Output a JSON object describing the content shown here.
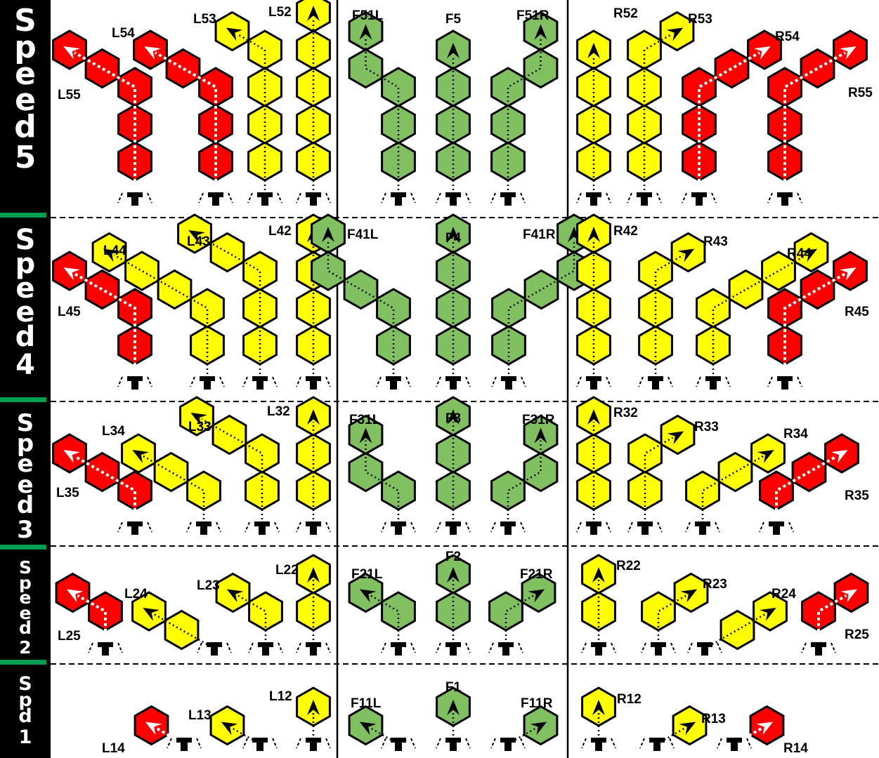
{
  "colors": {
    "red": "#ff0000",
    "yellow": "#ffff00",
    "green": "#80c060",
    "sidebar": "#000000",
    "sidebar_tab": "#00a050"
  },
  "icons": {
    "arrow": "arrow-icon",
    "ship_base": "ship-base-icon"
  },
  "speed_bands": [
    {
      "id": "speed-5",
      "word": "Speed",
      "number": "5"
    },
    {
      "id": "speed-4",
      "word": "Speed",
      "number": "4"
    },
    {
      "id": "speed-3",
      "word": "Speed",
      "number": "3"
    },
    {
      "id": "speed-2",
      "word": "Speed",
      "number": "2"
    },
    {
      "id": "speed-1",
      "word": "Spd",
      "number": "1"
    }
  ],
  "maneuvers": {
    "L55": {
      "label": "L55",
      "color": "red"
    },
    "L54": {
      "label": "L54",
      "color": "red"
    },
    "L53": {
      "label": "L53",
      "color": "yellow"
    },
    "L52": {
      "label": "L52",
      "color": "yellow"
    },
    "F51L": {
      "label": "F51L",
      "color": "green"
    },
    "F5": {
      "label": "F5",
      "color": "green"
    },
    "F51R": {
      "label": "F51R",
      "color": "green"
    },
    "R52": {
      "label": "R52",
      "color": "yellow"
    },
    "R53": {
      "label": "R53",
      "color": "yellow"
    },
    "R54": {
      "label": "R54",
      "color": "red"
    },
    "R55": {
      "label": "R55",
      "color": "red"
    },
    "L45": {
      "label": "L45",
      "color": "red"
    },
    "L44": {
      "label": "L44",
      "color": "yellow"
    },
    "L43": {
      "label": "L43",
      "color": "yellow"
    },
    "L42": {
      "label": "L42",
      "color": "yellow"
    },
    "F41L": {
      "label": "F41L",
      "color": "green"
    },
    "F4": {
      "label": "F4",
      "color": "green"
    },
    "F41R": {
      "label": "F41R",
      "color": "green"
    },
    "R42": {
      "label": "R42",
      "color": "yellow"
    },
    "R43": {
      "label": "R43",
      "color": "yellow"
    },
    "R44": {
      "label": "R44",
      "color": "yellow"
    },
    "R45": {
      "label": "R45",
      "color": "red"
    },
    "L35": {
      "label": "L35",
      "color": "red"
    },
    "L34": {
      "label": "L34",
      "color": "yellow"
    },
    "L33": {
      "label": "L33",
      "color": "yellow"
    },
    "L32": {
      "label": "L32",
      "color": "yellow"
    },
    "F31L": {
      "label": "F31L",
      "color": "green"
    },
    "F3": {
      "label": "F3",
      "color": "green"
    },
    "F31R": {
      "label": "F31R",
      "color": "green"
    },
    "R32": {
      "label": "R32",
      "color": "yellow"
    },
    "R33": {
      "label": "R33",
      "color": "yellow"
    },
    "R34": {
      "label": "R34",
      "color": "yellow"
    },
    "R35": {
      "label": "R35",
      "color": "red"
    },
    "L25": {
      "label": "L25",
      "color": "red"
    },
    "L24": {
      "label": "L24",
      "color": "yellow"
    },
    "L23": {
      "label": "L23",
      "color": "yellow"
    },
    "L22": {
      "label": "L22",
      "color": "yellow"
    },
    "F21L": {
      "label": "F21L",
      "color": "green"
    },
    "F2": {
      "label": "F2",
      "color": "green"
    },
    "F21R": {
      "label": "F21R",
      "color": "green"
    },
    "R22": {
      "label": "R22",
      "color": "yellow"
    },
    "R23": {
      "label": "R23",
      "color": "yellow"
    },
    "R24": {
      "label": "R24",
      "color": "yellow"
    },
    "R25": {
      "label": "R25",
      "color": "red"
    },
    "L14": {
      "label": "L14",
      "color": "red"
    },
    "L13": {
      "label": "L13",
      "color": "yellow"
    },
    "L12": {
      "label": "L12",
      "color": "yellow"
    },
    "F11L": {
      "label": "F11L",
      "color": "green"
    },
    "F1": {
      "label": "F1",
      "color": "green"
    },
    "F11R": {
      "label": "F11R",
      "color": "green"
    },
    "R12": {
      "label": "R12",
      "color": "yellow"
    },
    "R13": {
      "label": "R13",
      "color": "yellow"
    },
    "R14": {
      "label": "R14",
      "color": "red"
    }
  }
}
